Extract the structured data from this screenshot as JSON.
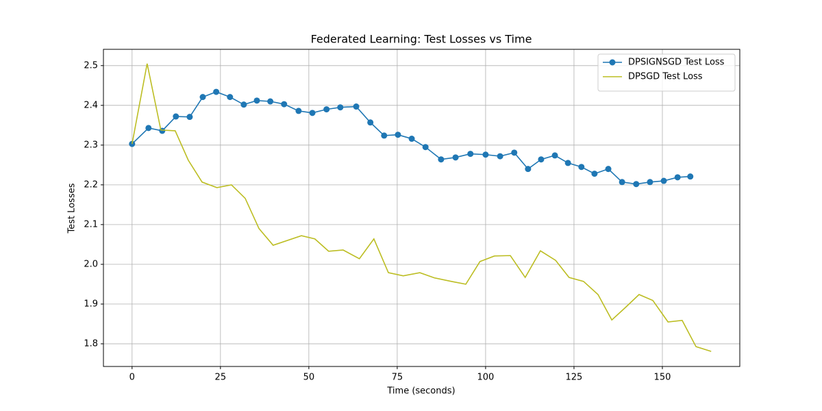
{
  "chart_data": {
    "type": "line",
    "title": "Federated Learning: Test Losses vs Time",
    "x_label": "Time (seconds)",
    "y_label": "Test Losses",
    "xlim": [
      -8.1,
      171.9
    ],
    "ylim": [
      1.743,
      2.541
    ],
    "xticks": [
      0,
      25,
      50,
      75,
      100,
      125,
      150
    ],
    "yticks": [
      1.8,
      1.9,
      {
        "value": 2,
        "label": "2.0"
      },
      2.1,
      2.2,
      2.3,
      2.4,
      2.5
    ],
    "grid": true,
    "legend": "upper-right",
    "series": [
      {
        "name": "DPSIGNSGD Test Loss",
        "color": "#1f77b4",
        "marker": "circle",
        "x": [
          0,
          4.65,
          8.53,
          12.4,
          16.3,
          20.0,
          23.8,
          27.7,
          31.6,
          35.3,
          39.1,
          43.0,
          47.1,
          51.0,
          55.0,
          58.9,
          63.4,
          67.4,
          71.3,
          75.2,
          79.1,
          83.0,
          87.4,
          91.5,
          95.7,
          100.0,
          104.1,
          108.1,
          112.0,
          115.7,
          119.6,
          123.3,
          127.1,
          130.8,
          134.7,
          138.6,
          142.6,
          146.5,
          150.4,
          154.3,
          157.9
        ],
        "values": [
          2.303,
          2.343,
          2.336,
          2.372,
          2.371,
          2.421,
          2.434,
          2.421,
          2.402,
          2.412,
          2.41,
          2.403,
          2.386,
          2.381,
          2.39,
          2.395,
          2.397,
          2.357,
          2.324,
          2.326,
          2.316,
          2.295,
          2.264,
          2.269,
          2.278,
          2.276,
          2.272,
          2.281,
          2.24,
          2.264,
          2.274,
          2.255,
          2.245,
          2.228,
          2.24,
          2.207,
          2.202,
          2.207,
          2.21,
          2.219,
          2.221
        ]
      },
      {
        "name": "DPSGD Test Loss",
        "color": "#bcbd22",
        "marker": "none",
        "x": [
          0,
          4.26,
          8.14,
          12.2,
          15.9,
          19.8,
          24.0,
          28.1,
          32.0,
          35.9,
          39.9,
          47.9,
          51.7,
          55.6,
          59.7,
          64.3,
          68.4,
          72.5,
          76.7,
          81.4,
          85.5,
          90.3,
          94.4,
          98.4,
          102.5,
          107.0,
          111.2,
          115.5,
          119.8,
          123.6,
          127.7,
          131.8,
          135.7,
          139.5,
          143.4,
          147.3,
          151.6,
          155.6,
          159.5,
          163.8
        ],
        "values": [
          2.303,
          2.505,
          2.338,
          2.336,
          2.262,
          2.207,
          2.193,
          2.2,
          2.166,
          2.09,
          2.048,
          2.072,
          2.064,
          2.033,
          2.036,
          2.014,
          2.064,
          1.979,
          1.971,
          1.979,
          1.966,
          1.957,
          1.95,
          2.007,
          2.021,
          2.022,
          1.967,
          2.034,
          2.01,
          1.967,
          1.957,
          1.924,
          1.86,
          1.891,
          1.924,
          1.909,
          1.855,
          1.859,
          1.793,
          1.781
        ]
      }
    ]
  }
}
